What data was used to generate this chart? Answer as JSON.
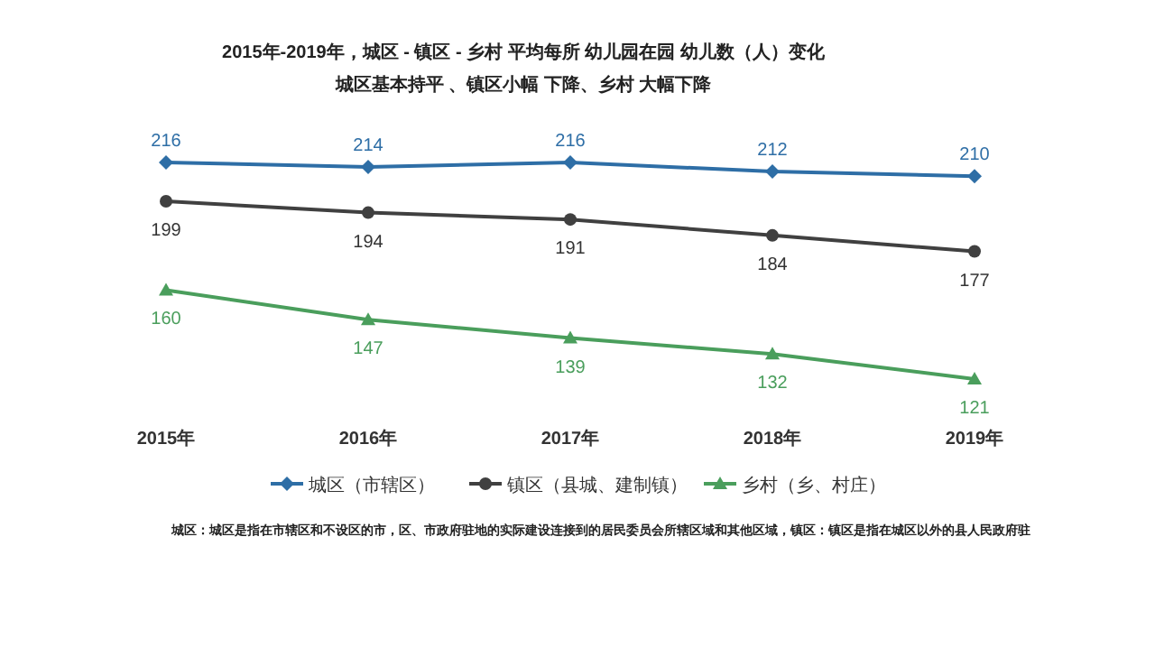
{
  "chart_data": {
    "type": "line",
    "title": "2015年-2019年，城区 - 镇区 - 乡村 平均每所 幼儿园在园 幼儿数（人）变化",
    "subtitle": "城区基本持平 、镇区小幅 下降、乡村 大幅下降",
    "categories": [
      "2015年",
      "2016年",
      "2017年",
      "2018年",
      "2019年"
    ],
    "series": [
      {
        "name": "城区（市辖区）",
        "color": "#2e6ea6",
        "marker": "diamond",
        "values": [
          216,
          214,
          216,
          212,
          210
        ]
      },
      {
        "name": "镇区（县城、建制镇）",
        "color": "#404040",
        "marker": "circle",
        "values": [
          199,
          194,
          191,
          184,
          177
        ]
      },
      {
        "name": "乡村（乡、村庄）",
        "color": "#4a9e5c",
        "marker": "triangle",
        "values": [
          160,
          147,
          139,
          132,
          121
        ]
      }
    ],
    "data_labels": true,
    "legend": "bottom",
    "annotations": [
      "城区：城区是指在市辖区和不设区的市，区、市政府驻地的实际建设连接到的居民委员会所辖区域和其他区域，镇区：镇区是指在城区以外的县人民政府驻"
    ]
  }
}
